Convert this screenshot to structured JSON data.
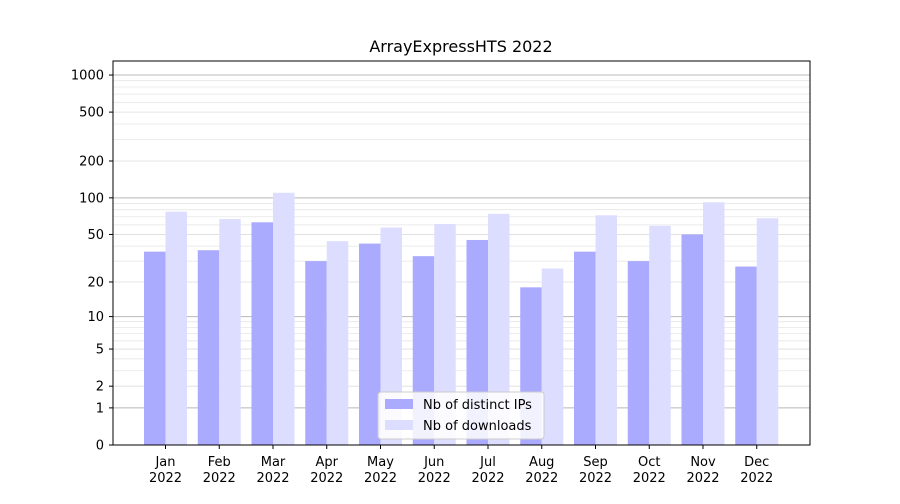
{
  "chart_data": {
    "type": "bar",
    "title": "ArrayExpressHTS 2022",
    "xlabel": "",
    "ylabel": "",
    "yscale": "log(1+y)",
    "ylim": [
      0,
      1300
    ],
    "yticks": [
      0,
      1,
      2,
      5,
      10,
      20,
      50,
      100,
      200,
      500,
      1000
    ],
    "categories": [
      "Jan\n2022",
      "Feb\n2022",
      "Mar\n2022",
      "Apr\n2022",
      "May\n2022",
      "Jun\n2022",
      "Jul\n2022",
      "Aug\n2022",
      "Sep\n2022",
      "Oct\n2022",
      "Nov\n2022",
      "Dec\n2022"
    ],
    "series": [
      {
        "name": "Nb of distinct IPs",
        "color": "#aaaaff",
        "values": [
          36,
          37,
          63,
          30,
          42,
          33,
          45,
          18,
          36,
          30,
          50,
          27
        ]
      },
      {
        "name": "Nb of downloads",
        "color": "#ddddff",
        "values": [
          77,
          67,
          110,
          44,
          57,
          61,
          74,
          26,
          72,
          59,
          92,
          68
        ]
      }
    ],
    "grid": true,
    "legend": "bottom-center"
  }
}
